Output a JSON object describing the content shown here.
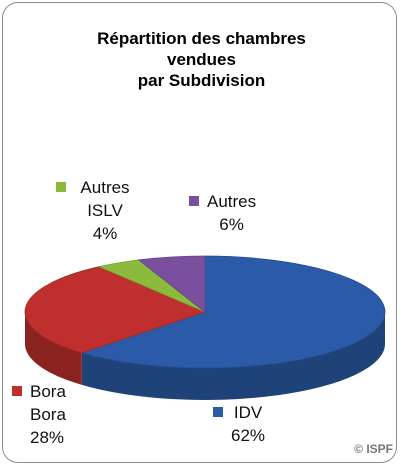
{
  "chart_data": {
    "type": "pie3d",
    "title": "Répartition des chambres\nvendues\npar Subdivision",
    "categories": [
      "IDV",
      "Bora Bora",
      "Autres ISLV",
      "Autres"
    ],
    "values": [
      62,
      28,
      4,
      6
    ],
    "value_labels": [
      "62%",
      "28%",
      "4%",
      "6%"
    ],
    "colors": [
      "#2b5ba8",
      "#bf2f2d",
      "#8cba3c",
      "#7a4f9e"
    ],
    "credit": "© ISPF"
  }
}
